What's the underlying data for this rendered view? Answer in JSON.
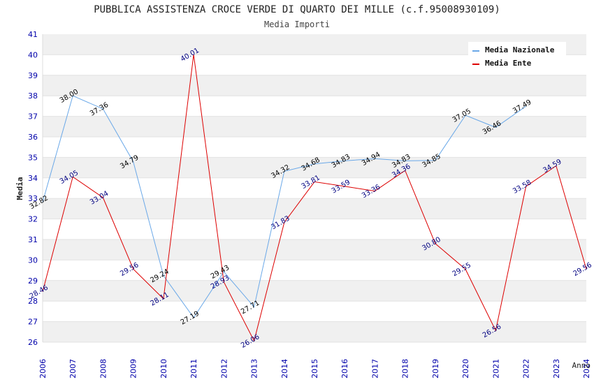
{
  "chart_data": {
    "type": "line",
    "title": "PUBBLICA ASSISTENZA CROCE VERDE DI QUARTO DEI MILLE (c.f.95008930109)",
    "subtitle": "Media Importi",
    "xlabel": "Anno",
    "ylabel": "Media",
    "ylim": [
      26,
      41
    ],
    "yticks": [
      "26",
      "27",
      "28",
      "29",
      "30",
      "31",
      "32",
      "33",
      "34",
      "35",
      "36",
      "37",
      "38",
      "39",
      "40",
      "41"
    ],
    "x": [
      "2006",
      "2007",
      "2008",
      "2009",
      "2010",
      "2011",
      "2012",
      "2013",
      "2014",
      "2015",
      "2016",
      "2017",
      "2018",
      "2019",
      "2020",
      "2021",
      "2022",
      "2023",
      "2024"
    ],
    "grid": "horizontal bands",
    "legend_position": "top-right",
    "series": [
      {
        "name": "Media Nazionale",
        "color": "#6aa8e8",
        "label_color": "#000000",
        "values": [
          32.82,
          38.0,
          37.36,
          34.79,
          29.24,
          27.19,
          29.43,
          27.71,
          34.32,
          34.68,
          34.83,
          34.94,
          34.83,
          34.85,
          37.05,
          36.46,
          37.49,
          null,
          null
        ],
        "labels": [
          "32.82",
          "38.00",
          "37.36",
          "34.79",
          "29.24",
          "27.19",
          "29.43",
          "27.71",
          "34.32",
          "34.68",
          "34.83",
          "34.94",
          "34.83",
          "34.85",
          "37.05",
          "36.46",
          "37.49",
          "",
          ""
        ]
      },
      {
        "name": "Media Ente",
        "color": "#dd0000",
        "label_color": "#000080",
        "values": [
          28.46,
          34.05,
          33.04,
          29.56,
          28.11,
          40.01,
          28.93,
          26.06,
          31.83,
          33.81,
          33.59,
          33.36,
          34.36,
          30.8,
          29.55,
          26.56,
          33.58,
          34.59,
          29.56
        ],
        "labels": [
          "28.46",
          "34.05",
          "33.04",
          "29.56",
          "28.11",
          "40.01",
          "28.93",
          "26.06",
          "31.83",
          "33.81",
          "33.59",
          "33.36",
          "34.36",
          "30.80",
          "29.55",
          "26.56",
          "33.58",
          "34.59",
          "29.56"
        ]
      }
    ]
  }
}
